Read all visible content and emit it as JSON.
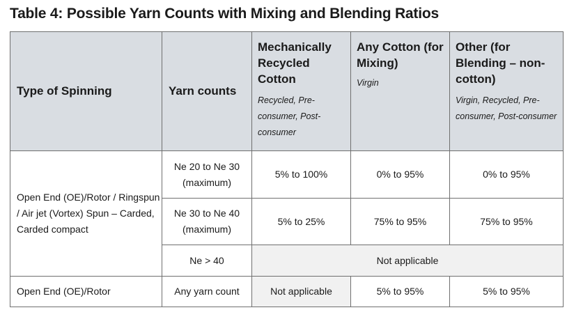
{
  "title": "Table 4: Possible Yarn Counts with Mixing and Blending Ratios",
  "headers": {
    "type_of_spinning": "Type of Spinning",
    "yarn_counts": "Yarn counts",
    "mech_recycled": {
      "label": "Mechanically Recycled Cotton",
      "sub": "Recycled, Pre-consumer, Post-consumer"
    },
    "any_cotton": {
      "label": "Any Cotton (for Mixing)",
      "sub": "Virgin"
    },
    "other": {
      "label": "Other (for Blending – non-cotton)",
      "sub": "Virgin, Recycled, Pre-consumer, Post-consumer"
    }
  },
  "rows": {
    "group1": {
      "spinning": "Open End (OE)/Rotor / Ringspun / Air jet (Vortex) Spun – Carded, Carded compact",
      "r1": {
        "count": "Ne 20 to Ne 30 (maximum)",
        "mech": "5% to 100%",
        "any": "0% to 95%",
        "other": "0% to 95%"
      },
      "r2": {
        "count": "Ne 30 to Ne 40 (maximum)",
        "mech": "5% to 25%",
        "any": "75% to 95%",
        "other": "75% to 95%"
      },
      "r3": {
        "count": "Ne > 40",
        "merged": "Not applicable"
      }
    },
    "group2": {
      "spinning": "Open End (OE)/Rotor",
      "count": "Any yarn count",
      "mech": "Not applicable",
      "any": "5% to 95%",
      "other": "5% to 95%"
    }
  }
}
